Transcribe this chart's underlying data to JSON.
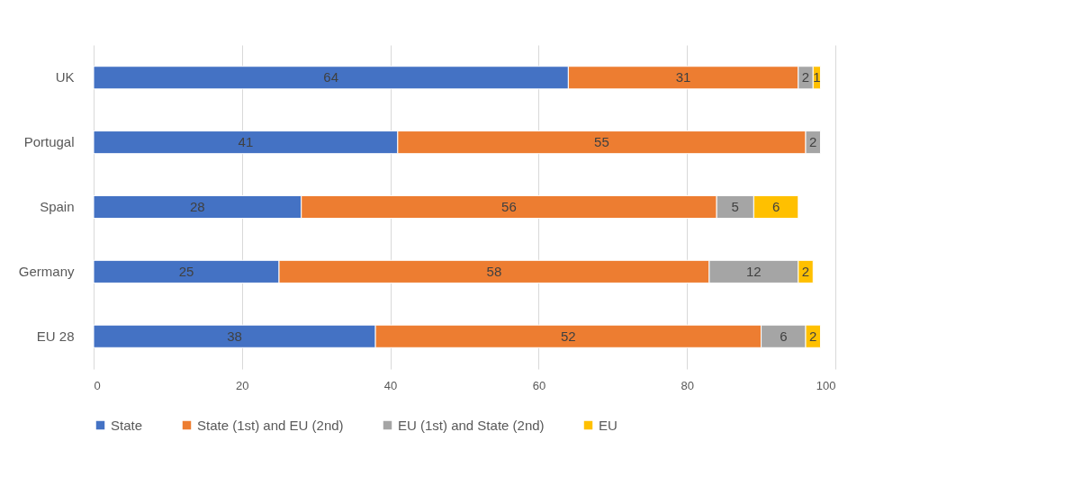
{
  "chart_data": {
    "type": "bar",
    "orientation": "horizontal",
    "stacked": true,
    "data_labels": true,
    "grid": "x",
    "legend": "bottom",
    "categories": [
      "UK",
      "Portugal",
      "Spain",
      "Germany",
      "EU 28"
    ],
    "series": [
      {
        "name": "State",
        "color": "#4472c4",
        "values": [
          64,
          41,
          28,
          25,
          38
        ]
      },
      {
        "name": "State (1st) and EU (2nd)",
        "color": "#ed7d31",
        "values": [
          31,
          55,
          56,
          58,
          52
        ]
      },
      {
        "name": "EU (1st) and State (2nd)",
        "color": "#a5a5a5",
        "values": [
          2,
          2,
          5,
          12,
          6
        ]
      },
      {
        "name": "EU",
        "color": "#ffc000",
        "values": [
          1,
          null,
          6,
          2,
          2
        ]
      }
    ],
    "xlim": [
      0,
      100
    ],
    "xticks": [
      0,
      20,
      40,
      60,
      80,
      100
    ]
  }
}
